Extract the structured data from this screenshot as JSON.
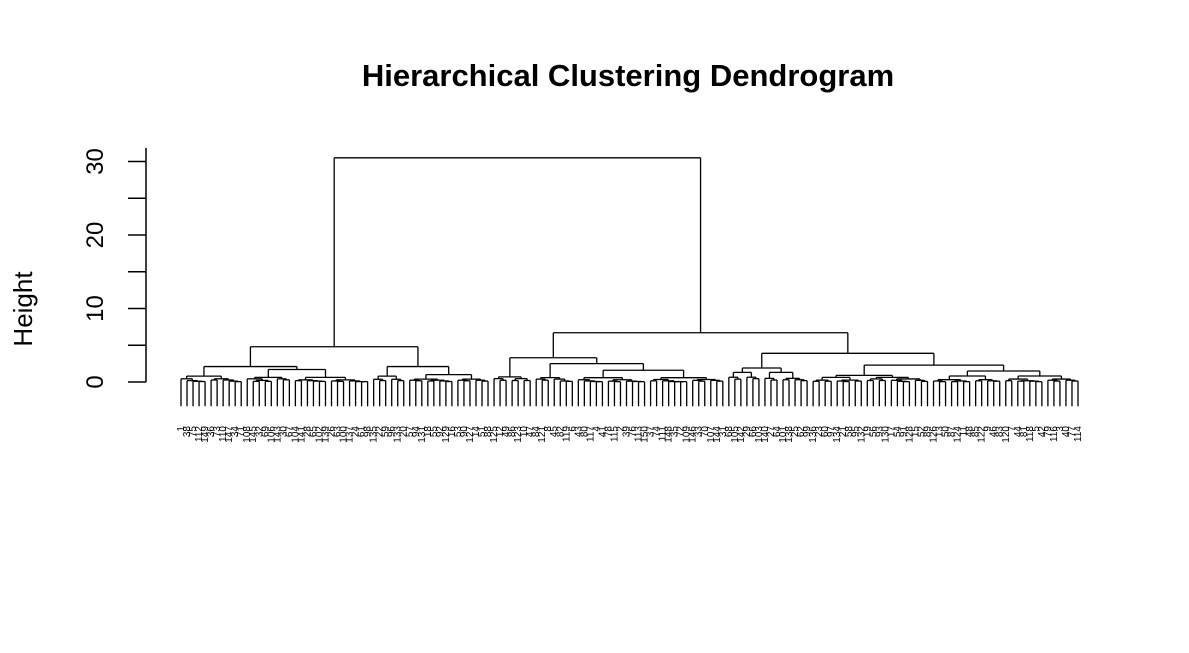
{
  "chart_data": {
    "type": "dendrogram",
    "title": "Hierarchical Clustering Dendrogram",
    "xlabel": "",
    "ylabel": "Height",
    "ylim": [
      0,
      31
    ],
    "y_ticks": [
      0,
      10,
      20,
      30
    ],
    "leaf_count": 150,
    "root_height": 30.5,
    "merges": [
      {
        "id": "root",
        "height": 30.5,
        "children": [
          "A",
          "B"
        ]
      },
      {
        "id": "A",
        "height": 4.8,
        "children": [
          "A1",
          "A2"
        ]
      },
      {
        "id": "A1",
        "height": 2.1,
        "children": [
          "A1a",
          "A1b"
        ]
      },
      {
        "id": "A1a",
        "height": 0.8,
        "leaves": 11
      },
      {
        "id": "A1b",
        "height": 1.7,
        "leaves": 21
      },
      {
        "id": "A2",
        "height": 2.1,
        "children": [
          "A2a",
          "A2b"
        ]
      },
      {
        "id": "A2a",
        "height": 0.8,
        "leaves": 6
      },
      {
        "id": "A2b",
        "height": 1.0,
        "leaves": 14
      },
      {
        "id": "B",
        "height": 6.7,
        "children": [
          "B1",
          "B2"
        ]
      },
      {
        "id": "B1",
        "height": 3.3,
        "children": [
          "B1a",
          "B1b"
        ]
      },
      {
        "id": "B1a",
        "height": 0.7,
        "leaves": 7
      },
      {
        "id": "B1b",
        "height": 2.5,
        "children": [
          "B1b1",
          "B1b2"
        ]
      },
      {
        "id": "B1b1",
        "height": 0.6,
        "leaves": 7
      },
      {
        "id": "B1b2",
        "height": 1.6,
        "leaves": 25
      },
      {
        "id": "B2",
        "height": 3.9,
        "children": [
          "B2a",
          "B2b"
        ]
      },
      {
        "id": "B2a",
        "height": 1.9,
        "leaves": 14
      },
      {
        "id": "B2b",
        "height": 2.3,
        "children": [
          "B2b1",
          "B2b2"
        ]
      },
      {
        "id": "B2b1",
        "height": 0.9,
        "leaves": 20
      },
      {
        "id": "B2b2",
        "height": 1.5,
        "leaves": 25
      }
    ],
    "grid": false,
    "legend": "none"
  }
}
